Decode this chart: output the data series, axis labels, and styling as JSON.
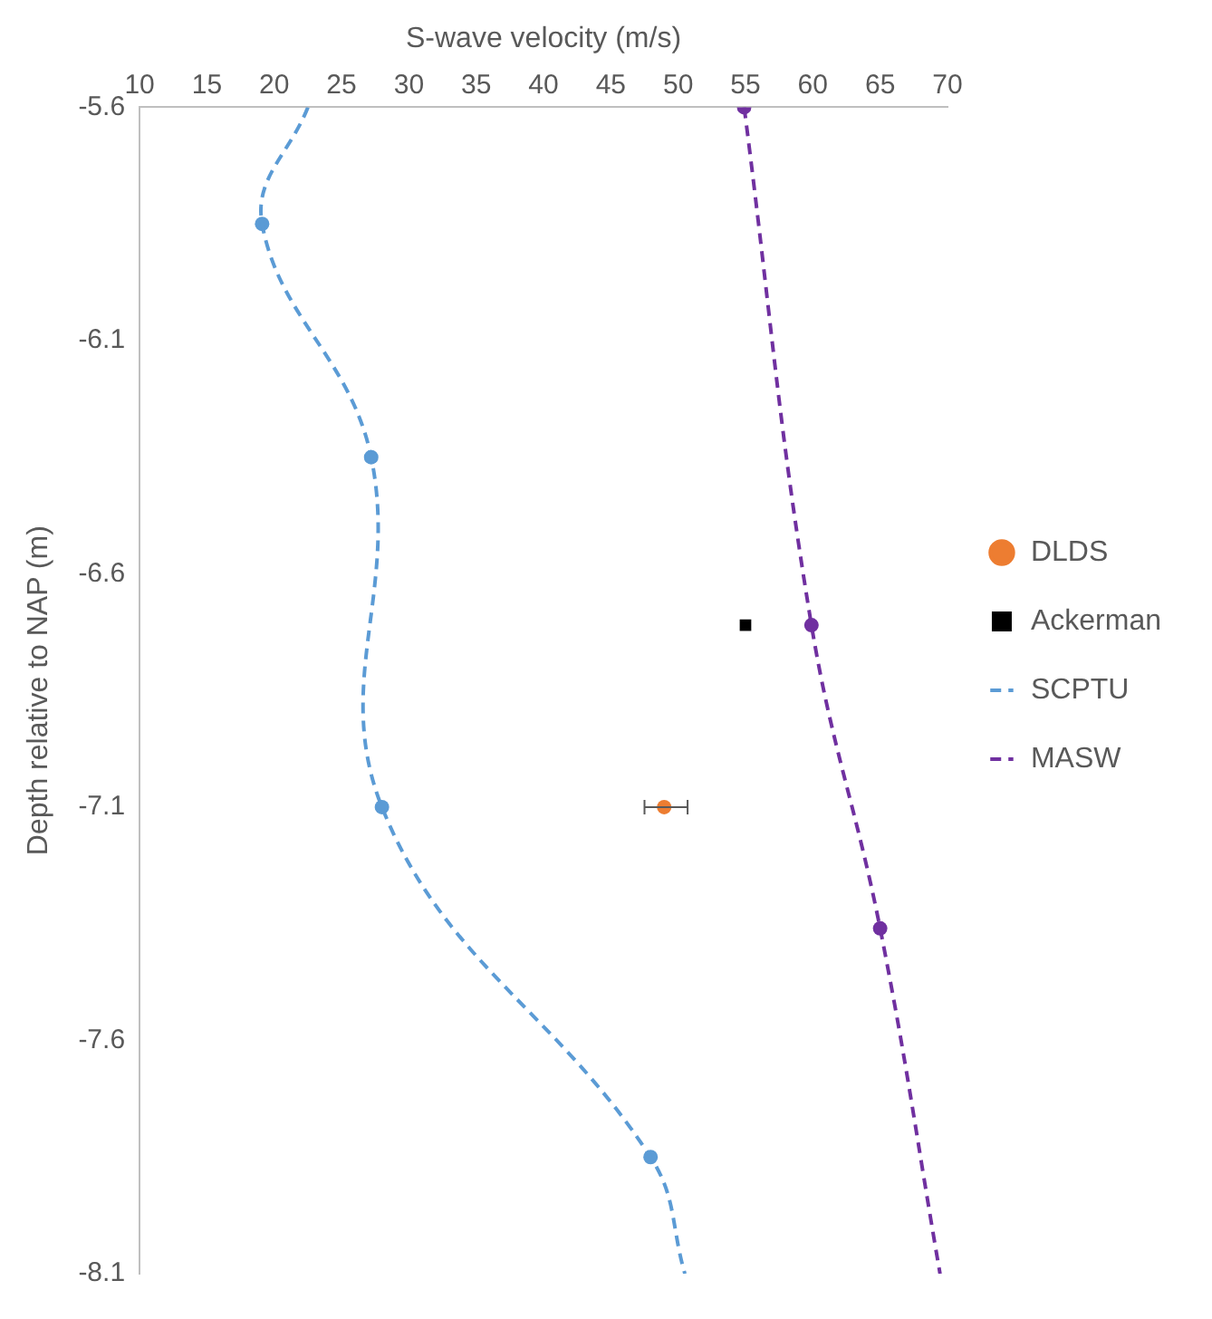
{
  "chart_data": {
    "type": "scatter",
    "xlabel": "S-wave velocity (m/s)",
    "ylabel": "Depth relative to NAP (m)",
    "xlim": [
      10,
      70
    ],
    "xticks": [
      10,
      15,
      20,
      25,
      30,
      35,
      40,
      45,
      50,
      55,
      60,
      65,
      70
    ],
    "ylim": [
      -8.1,
      -5.6
    ],
    "yticks": [
      -5.6,
      -6.1,
      -6.6,
      -7.1,
      -7.6,
      -8.1
    ],
    "grid": false,
    "legend": "right",
    "series": [
      {
        "type": "scatter",
        "name": "DLDS",
        "color": "#ed7d31",
        "marker": "circle",
        "x": [
          48.96
        ],
        "values": [
          -7.1
        ],
        "xerrors": [
          [
            47.5,
            50.7
          ]
        ]
      },
      {
        "type": "scatter",
        "name": "Ackerman",
        "color": "#000000",
        "marker": "square",
        "x": [
          55
        ],
        "values": [
          -6.71
        ]
      },
      {
        "type": "line",
        "name": "SCPTU",
        "color": "#5b9bd5",
        "marker": "none",
        "line_style": "dashed",
        "x": [
          22.5,
          19.1,
          27.2,
          28,
          47.95,
          50.5
        ],
        "values": [
          -5.6,
          -5.85,
          -6.35,
          -7.1,
          -7.85,
          -8.1
        ]
      },
      {
        "type": "line",
        "name": "MASW",
        "color": "#7030a0",
        "marker": "none",
        "line_style": "dashed",
        "x": [
          54.9,
          59.9,
          65,
          69.45
        ],
        "values": [
          -5.6,
          -6.71,
          -7.36,
          -8.1
        ]
      },
      {
        "type": "scatter",
        "color": "#5b9bd5",
        "marker": "circle",
        "x": [
          19.1,
          27.2,
          28,
          47.95
        ],
        "values": [
          -5.85,
          -6.35,
          -7.1,
          -7.85
        ]
      },
      {
        "type": "scatter",
        "color": "#7030a0",
        "marker": "circle",
        "x": [
          54.9,
          59.9,
          65
        ],
        "values": [
          -5.6,
          -6.71,
          -7.36
        ]
      }
    ]
  }
}
